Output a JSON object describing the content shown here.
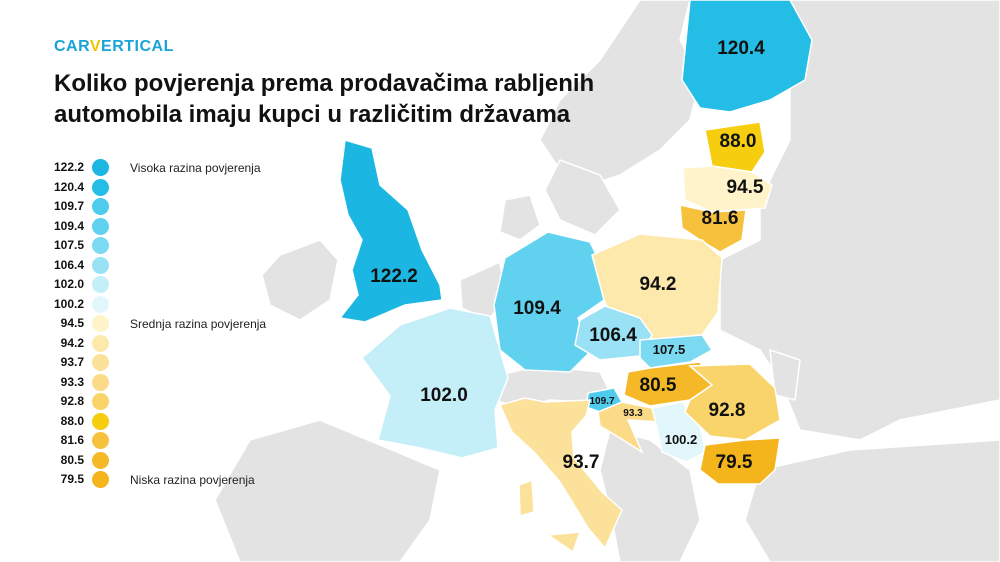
{
  "brand": {
    "logo_pre": "CAR",
    "logo_v": "V",
    "logo_post": "ERTICAL"
  },
  "title_line1": "Koliko povjerenja prema prodavačima rabljenih",
  "title_line2": "automobila imaju kupci u različitim državama",
  "legend": [
    {
      "value": "122.2",
      "color": "#1cb6e2",
      "label": "Visoka razina povjerenja"
    },
    {
      "value": "120.4",
      "color": "#23bde6",
      "label": ""
    },
    {
      "value": "109.7",
      "color": "#4fcbed",
      "label": ""
    },
    {
      "value": "109.4",
      "color": "#60d2f0",
      "label": ""
    },
    {
      "value": "107.5",
      "color": "#7cd9f2",
      "label": ""
    },
    {
      "value": "106.4",
      "color": "#99e1f4",
      "label": ""
    },
    {
      "value": "102.0",
      "color": "#c4eef8",
      "label": ""
    },
    {
      "value": "100.2",
      "color": "#e2f7fc",
      "label": ""
    },
    {
      "value": "94.5",
      "color": "#fff3c9",
      "label": "Srednja razina povjerenja"
    },
    {
      "value": "94.2",
      "color": "#fde9ab",
      "label": ""
    },
    {
      "value": "93.7",
      "color": "#fbe19a",
      "label": ""
    },
    {
      "value": "93.3",
      "color": "#fbda88",
      "label": ""
    },
    {
      "value": "92.8",
      "color": "#f8d46b",
      "label": ""
    },
    {
      "value": "88.0",
      "color": "#f6cd0f",
      "label": ""
    },
    {
      "value": "81.6",
      "color": "#f6c23e",
      "label": ""
    },
    {
      "value": "80.5",
      "color": "#f5b927",
      "label": ""
    },
    {
      "value": "79.5",
      "color": "#f4b51c",
      "label": "Niska razina povjerenja"
    }
  ],
  "countries": [
    {
      "name": "UK",
      "value": "122.2",
      "color": "#1cb6e2"
    },
    {
      "name": "Finland",
      "value": "120.4",
      "color": "#23bde6"
    },
    {
      "name": "Slovenia",
      "value": "109.7",
      "color": "#4fcbed"
    },
    {
      "name": "Germany",
      "value": "109.4",
      "color": "#60d2f0"
    },
    {
      "name": "Slovakia",
      "value": "107.5",
      "color": "#7cd9f2"
    },
    {
      "name": "Czechia",
      "value": "106.4",
      "color": "#99e1f4"
    },
    {
      "name": "France",
      "value": "102.0",
      "color": "#c4eef8"
    },
    {
      "name": "Serbia",
      "value": "100.2",
      "color": "#e2f7fc"
    },
    {
      "name": "Latvia",
      "value": "94.5",
      "color": "#fff3c9"
    },
    {
      "name": "Poland",
      "value": "94.2",
      "color": "#fde9ab"
    },
    {
      "name": "Italy",
      "value": "93.7",
      "color": "#fbe19a"
    },
    {
      "name": "Croatia",
      "value": "93.3",
      "color": "#fbda88"
    },
    {
      "name": "Romania",
      "value": "92.8",
      "color": "#f8d46b"
    },
    {
      "name": "Estonia",
      "value": "88.0",
      "color": "#f6cd0f"
    },
    {
      "name": "Lithuania",
      "value": "81.6",
      "color": "#f6c23e"
    },
    {
      "name": "Hungary",
      "value": "80.5",
      "color": "#f5b927"
    },
    {
      "name": "Bulgaria",
      "value": "79.5",
      "color": "#f4b51c"
    }
  ],
  "colors": {
    "background_land": "#e3e3e3",
    "border": "#ffffff"
  }
}
